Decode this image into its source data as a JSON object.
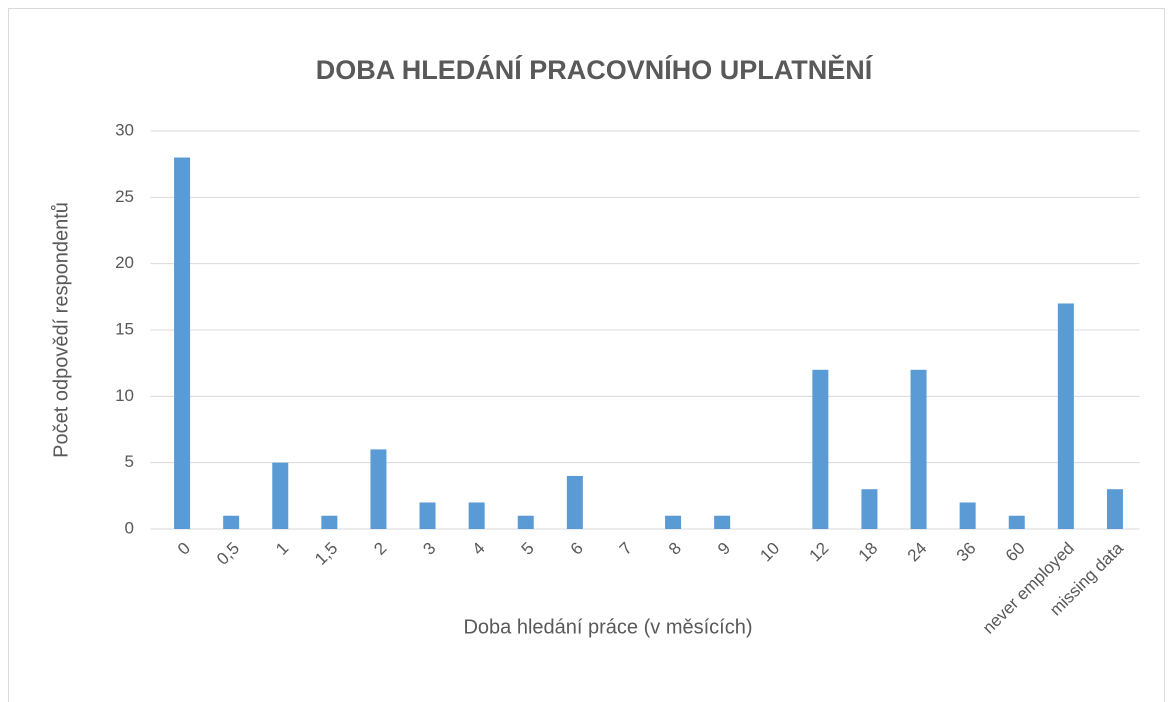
{
  "chart_data": {
    "type": "bar",
    "title": "DOBA HLEDÁNÍ PRACOVNÍHO UPLATNĚNÍ",
    "x_label": "Doba hledání práce (v měsících)",
    "y_label": "Počet odpovědí respondentů",
    "categories": [
      "0",
      "0,5",
      "1",
      "1,5",
      "2",
      "3",
      "4",
      "5",
      "6",
      "7",
      "8",
      "9",
      "10",
      "12",
      "18",
      "24",
      "36",
      "60",
      "never employed",
      "missing data"
    ],
    "values": [
      28,
      1,
      5,
      1,
      6,
      2,
      2,
      1,
      4,
      0,
      1,
      1,
      0,
      12,
      3,
      12,
      2,
      1,
      17,
      3
    ],
    "color": "#5b9bd5",
    "ylim": [
      0,
      30
    ],
    "yticks": [
      0,
      5,
      10,
      15,
      20,
      25,
      30
    ],
    "grid": true
  }
}
